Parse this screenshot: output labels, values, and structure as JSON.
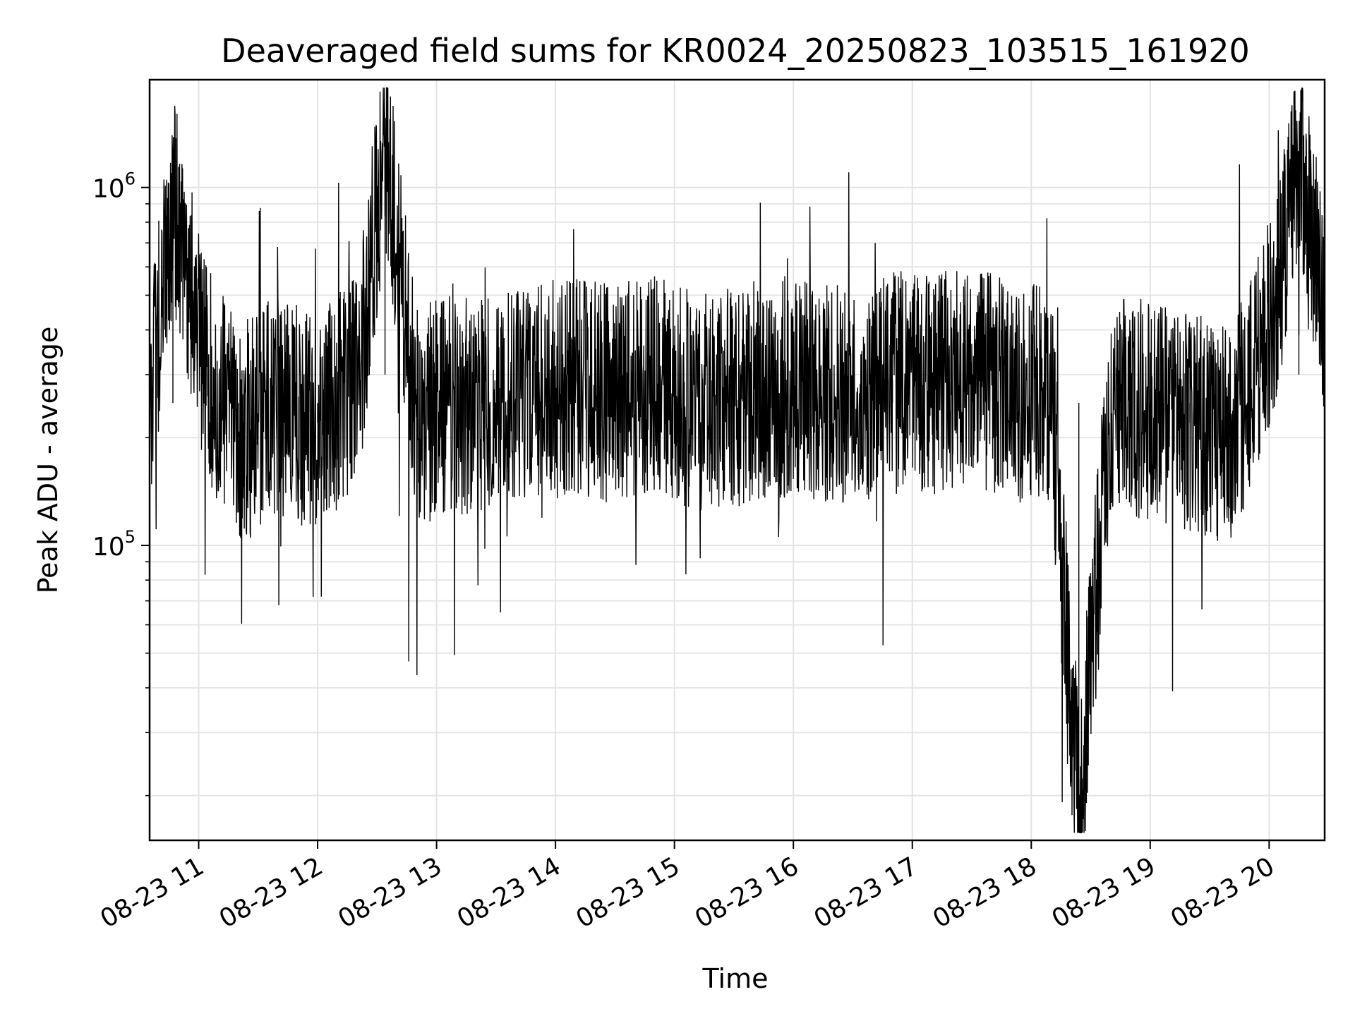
{
  "chart_data": {
    "type": "line",
    "title": "Deaveraged field sums for KR0024_20250823_103515_161920",
    "xlabel": "Time",
    "ylabel": "Peak ADU - average",
    "x_scale": "time",
    "y_scale": "log",
    "xlim": [
      "2025-08-23 10:35:15",
      "2025-08-23 20:28:00"
    ],
    "ylim": [
      15000,
      2000000
    ],
    "x_ticks": [
      "08-23 11",
      "08-23 12",
      "08-23 13",
      "08-23 14",
      "08-23 15",
      "08-23 16",
      "08-23 17",
      "08-23 18",
      "08-23 19",
      "08-23 20"
    ],
    "y_ticks": [
      {
        "value": 100000,
        "base": "10",
        "exp": "5"
      },
      {
        "value": 1000000,
        "base": "10",
        "exp": "6"
      }
    ],
    "grid": true,
    "line_color": "#000000",
    "series": [
      {
        "x": [
          "2025-08-23 10:35:15",
          "2025-08-23 10:47:00",
          "2025-08-23 11:05:00",
          "2025-08-23 11:20:00",
          "2025-08-23 11:40:00",
          "2025-08-23 12:00:00",
          "2025-08-23 12:20:00",
          "2025-08-23 12:34:00",
          "2025-08-23 12:50:00",
          "2025-08-23 13:10:00",
          "2025-08-23 13:30:00",
          "2025-08-23 13:50:00",
          "2025-08-23 14:10:00",
          "2025-08-23 14:30:00",
          "2025-08-23 14:50:00",
          "2025-08-23 15:10:00",
          "2025-08-23 15:30:00",
          "2025-08-23 15:50:00",
          "2025-08-23 16:10:00",
          "2025-08-23 16:30:00",
          "2025-08-23 16:50:00",
          "2025-08-23 17:10:00",
          "2025-08-23 17:30:00",
          "2025-08-23 17:50:00",
          "2025-08-23 18:10:00",
          "2025-08-23 18:24:00",
          "2025-08-23 18:40:00",
          "2025-08-23 19:00:00",
          "2025-08-23 19:20:00",
          "2025-08-23 19:40:00",
          "2025-08-23 20:00:00",
          "2025-08-23 20:15:00",
          "2025-08-23 20:28:00"
        ],
        "values": [
          250000,
          900000,
          300000,
          200000,
          250000,
          220000,
          280000,
          1400000,
          230000,
          250000,
          240000,
          270000,
          280000,
          260000,
          290000,
          250000,
          260000,
          280000,
          270000,
          260000,
          290000,
          280000,
          300000,
          270000,
          260000,
          17000,
          250000,
          240000,
          220000,
          200000,
          400000,
          1100000,
          450000
        ]
      }
    ]
  }
}
